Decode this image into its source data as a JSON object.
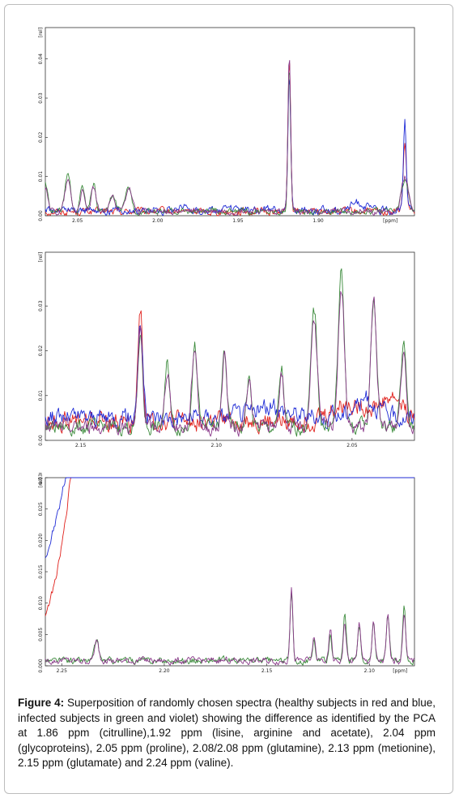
{
  "figure": {
    "caption_label": "Figure 4:",
    "caption_text": " Superposition of randomly chosen spectra (healthy subjects in red and blue, infected subjects in green and violet) showing the difference as identified by the PCA at 1.86 ppm (citrulline),1.92 ppm (lisine, arginine and acetate), 2.04 ppm (glycoproteins), 2.05 ppm (proline), 2.08/2.08 ppm (glutamine), 2.13 ppm (metionine), 2.15 ppm (glutamate) and 2.24 ppm (valine)."
  },
  "colors": {
    "healthy_a": "#e0201b",
    "healthy_b": "#1f2bd6",
    "infected_a": "#3a8a3a",
    "infected_b": "#8a3a8a"
  },
  "chart_data": [
    {
      "type": "line",
      "y_unit": "[rel]",
      "x_unit": "[ppm]",
      "x_reversed": true,
      "xlim": [
        2.07,
        1.84
      ],
      "ylim": [
        0.0,
        0.048
      ],
      "xticks": [
        "2.05",
        "2.00",
        "1.95",
        "1.90",
        "[ppm]"
      ],
      "xtick_values": [
        2.05,
        2.0,
        1.95,
        1.9,
        1.855
      ],
      "yticks": [
        "0.00",
        "0.01",
        "0.02",
        "0.03",
        "0.04"
      ],
      "ytick_values": [
        0.0,
        0.01,
        0.02,
        0.03,
        0.04
      ],
      "series": [
        {
          "color": "#e0201b",
          "baseline": 0.0005,
          "noise": 0.0007,
          "peaks": [
            [
              1.918,
              0.039,
              0.0012
            ],
            [
              1.846,
              0.017,
              0.0015
            ]
          ]
        },
        {
          "color": "#1f2bd6",
          "baseline": 0.0008,
          "noise": 0.0008,
          "peaks": [
            [
              1.918,
              0.035,
              0.0012
            ],
            [
              1.846,
              0.023,
              0.0013
            ],
            [
              1.985,
              0.001,
              0.004
            ],
            [
              1.875,
              0.002,
              0.006
            ]
          ]
        },
        {
          "color": "#3a8a3a",
          "baseline": 0.0006,
          "noise": 0.0006,
          "peaks": [
            [
              2.07,
              0.007,
              0.0025
            ],
            [
              2.056,
              0.009,
              0.0025
            ],
            [
              2.047,
              0.006,
              0.002
            ],
            [
              2.04,
              0.007,
              0.002
            ],
            [
              2.028,
              0.004,
              0.0025
            ],
            [
              2.018,
              0.006,
              0.0025
            ],
            [
              1.918,
              0.037,
              0.0012
            ],
            [
              1.846,
              0.008,
              0.003
            ]
          ]
        },
        {
          "color": "#8a3a8a",
          "baseline": 0.0006,
          "noise": 0.0006,
          "peaks": [
            [
              2.07,
              0.006,
              0.0025
            ],
            [
              2.056,
              0.008,
              0.0025
            ],
            [
              2.047,
              0.005,
              0.002
            ],
            [
              2.04,
              0.006,
              0.002
            ],
            [
              2.028,
              0.004,
              0.0025
            ],
            [
              2.018,
              0.006,
              0.0025
            ],
            [
              1.918,
              0.039,
              0.0012
            ],
            [
              1.846,
              0.009,
              0.003
            ]
          ]
        }
      ]
    },
    {
      "type": "line",
      "y_unit": "[rel]",
      "x_unit": "[ppm]",
      "x_reversed": true,
      "xlim": [
        2.163,
        2.027
      ],
      "ylim": [
        0.0,
        0.042
      ],
      "xticks": [
        "2.15",
        "2.10",
        "2.05",
        "2.00",
        "[ppm]"
      ],
      "xtick_values": [
        2.15,
        2.1,
        2.05,
        2.0,
        1.98
      ],
      "yticks": [
        "0.00",
        "0.01",
        "0.02",
        "0.03"
      ],
      "ytick_values": [
        0.0,
        0.01,
        0.02,
        0.03
      ],
      "series": [
        {
          "color": "#e0201b",
          "baseline": 0.003,
          "noise": 0.0016,
          "peaks": [
            [
              2.128,
              0.026,
              0.0012
            ],
            [
              2.05,
              0.004,
              0.01
            ],
            [
              2.035,
              0.005,
              0.006
            ]
          ]
        },
        {
          "color": "#1f2bd6",
          "baseline": 0.004,
          "noise": 0.0015,
          "peaks": [
            [
              2.128,
              0.021,
              0.0013
            ],
            [
              2.08,
              0.002,
              0.01
            ],
            [
              2.045,
              0.004,
              0.006
            ]
          ]
        },
        {
          "color": "#3a8a3a",
          "baseline": 0.002,
          "noise": 0.0012,
          "peaks": [
            [
              2.128,
              0.021,
              0.0012
            ],
            [
              2.118,
              0.014,
              0.0013
            ],
            [
              2.108,
              0.018,
              0.0014
            ],
            [
              2.097,
              0.017,
              0.0012
            ],
            [
              2.088,
              0.011,
              0.0012
            ],
            [
              2.076,
              0.013,
              0.0012
            ],
            [
              2.064,
              0.026,
              0.0016
            ],
            [
              2.054,
              0.034,
              0.0016
            ],
            [
              2.042,
              0.029,
              0.0015
            ],
            [
              2.031,
              0.018,
              0.0014
            ]
          ]
        },
        {
          "color": "#8a3a8a",
          "baseline": 0.002,
          "noise": 0.0012,
          "peaks": [
            [
              2.128,
              0.022,
              0.0012
            ],
            [
              2.118,
              0.013,
              0.0013
            ],
            [
              2.108,
              0.018,
              0.0014
            ],
            [
              2.097,
              0.016,
              0.0012
            ],
            [
              2.088,
              0.011,
              0.0012
            ],
            [
              2.076,
              0.012,
              0.0012
            ],
            [
              2.064,
              0.025,
              0.0016
            ],
            [
              2.054,
              0.031,
              0.0016
            ],
            [
              2.042,
              0.028,
              0.0015
            ],
            [
              2.031,
              0.017,
              0.0014
            ]
          ]
        }
      ]
    },
    {
      "type": "line",
      "y_unit": "[rel]",
      "x_unit": "[ppm]",
      "x_reversed": true,
      "xlim": [
        2.258,
        2.078
      ],
      "ylim": [
        0.0,
        0.03
      ],
      "xticks": [
        "2.25",
        "2.20",
        "2.15",
        "2.10",
        "[ppm]"
      ],
      "xtick_values": [
        2.25,
        2.2,
        2.15,
        2.1,
        2.085
      ],
      "yticks": [
        "0.000",
        "0.005",
        "0.010",
        "0.015",
        "0.020",
        "0.025",
        "0.030"
      ],
      "ytick_values": [
        0.0,
        0.005,
        0.01,
        0.015,
        0.02,
        0.025,
        0.03
      ],
      "series": [
        {
          "color": "#e0201b",
          "baseline": 0.0004,
          "noise": 0.0004,
          "decay": [
            2.245,
            0.032,
            0.009
          ],
          "peaks": [
            [
              2.138,
              0.012,
              0.0009
            ],
            [
              2.124,
              0.002,
              0.002
            ]
          ]
        },
        {
          "color": "#1f2bd6",
          "baseline": 0.0018,
          "noise": 0.0006,
          "decay": [
            2.245,
            0.034,
            0.016
          ],
          "peaks": [
            [
              2.138,
              0.01,
              0.0009
            ],
            [
              2.1,
              0.002,
              0.01
            ]
          ]
        },
        {
          "color": "#3a8a3a",
          "baseline": 0.0005,
          "noise": 0.0004,
          "peaks": [
            [
              2.233,
              0.003,
              0.0015
            ],
            [
              2.138,
              0.011,
              0.0009
            ],
            [
              2.127,
              0.004,
              0.0009
            ],
            [
              2.119,
              0.005,
              0.0009
            ],
            [
              2.112,
              0.007,
              0.001
            ],
            [
              2.105,
              0.006,
              0.001
            ],
            [
              2.098,
              0.006,
              0.001
            ],
            [
              2.091,
              0.007,
              0.001
            ],
            [
              2.083,
              0.009,
              0.001
            ]
          ]
        },
        {
          "color": "#8a3a8a",
          "baseline": 0.0005,
          "noise": 0.0004,
          "peaks": [
            [
              2.233,
              0.003,
              0.0015
            ],
            [
              2.138,
              0.012,
              0.0009
            ],
            [
              2.127,
              0.004,
              0.0009
            ],
            [
              2.119,
              0.005,
              0.0009
            ],
            [
              2.112,
              0.006,
              0.001
            ],
            [
              2.105,
              0.006,
              0.001
            ],
            [
              2.098,
              0.006,
              0.001
            ],
            [
              2.091,
              0.007,
              0.001
            ],
            [
              2.083,
              0.008,
              0.001
            ]
          ]
        }
      ]
    }
  ]
}
